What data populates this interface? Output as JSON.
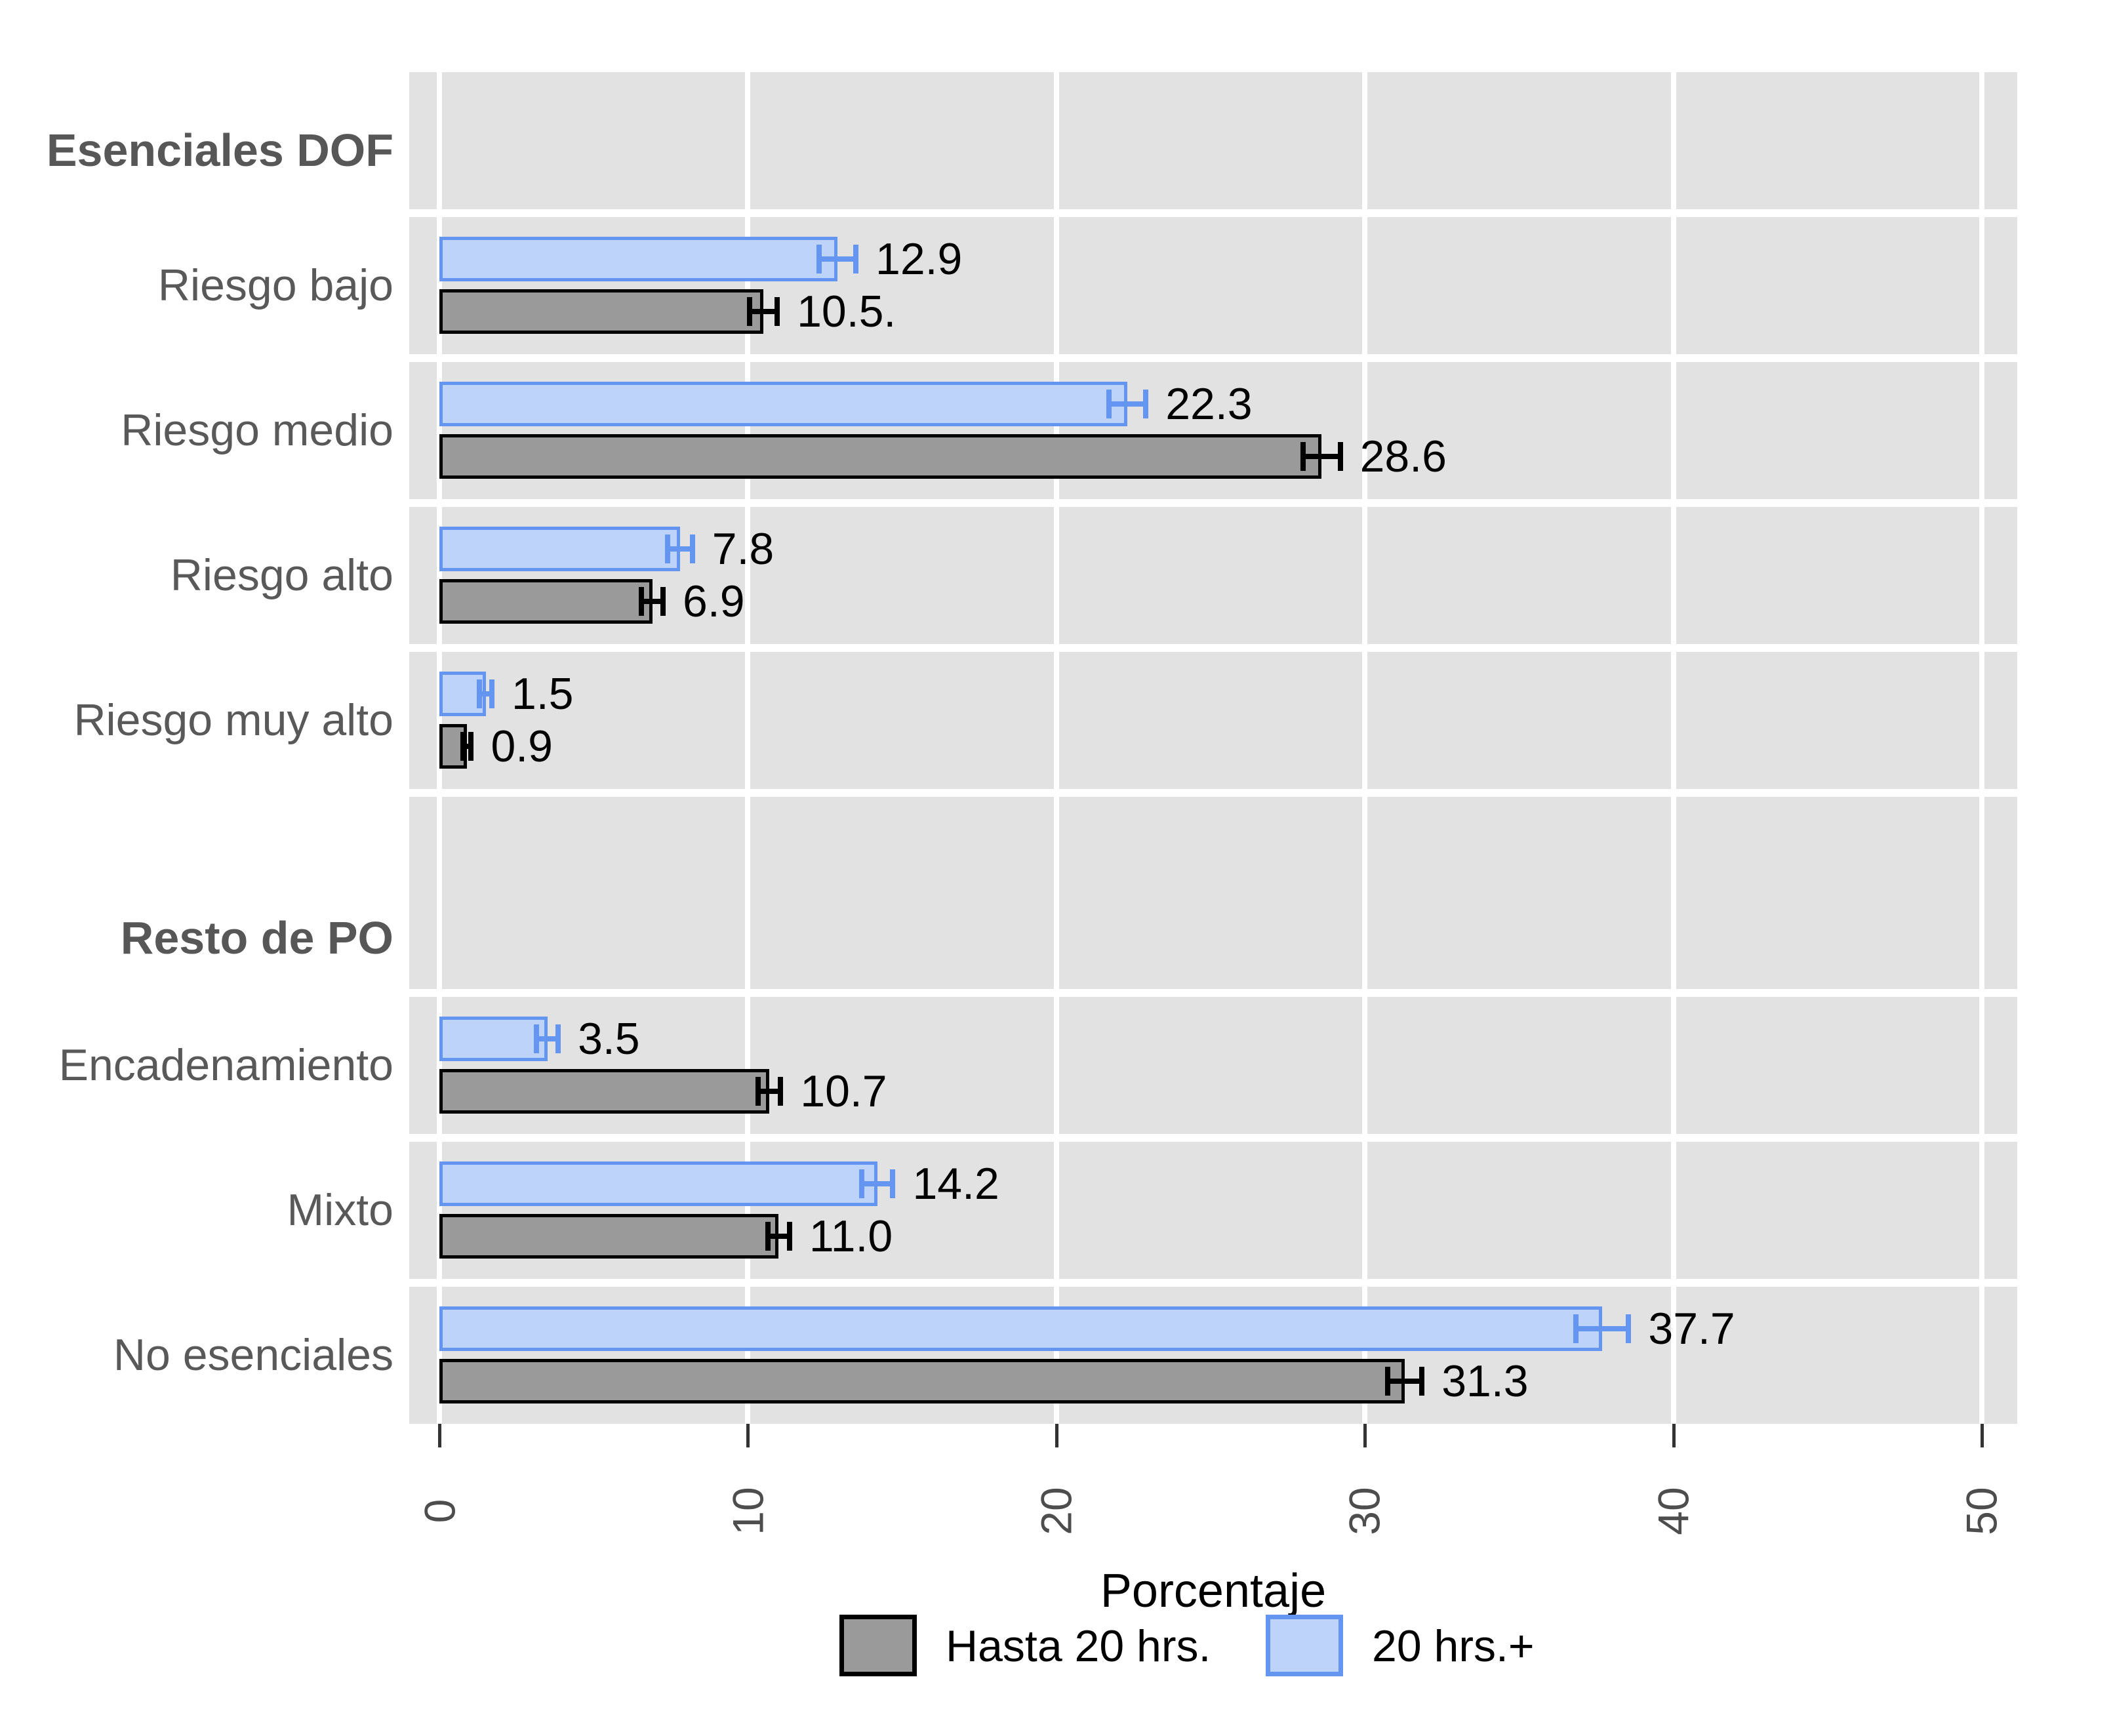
{
  "chart_data": {
    "type": "bar",
    "orientation": "horizontal",
    "xlabel": "Porcentaje",
    "x_ticks": [
      "0",
      "10",
      "20",
      "30",
      "40",
      "50"
    ],
    "x_tick_values": [
      0,
      10,
      20,
      30,
      40,
      50
    ],
    "xlim": [
      0,
      51
    ],
    "grid": "white vertical gridlines on gray band background",
    "legend_position": "bottom",
    "series_names": [
      "Hasta 20 hrs.",
      "20 hrs.+"
    ],
    "colors": {
      "blue_fill": "#bed3f9",
      "blue_border": "#6495f0",
      "gray_fill": "#9a9a9a",
      "gray_border": "#000000",
      "band_background": "#e2e2e2",
      "category_text": "#595959",
      "tick_text": "#4d4d4d"
    },
    "rows": [
      {
        "kind": "header",
        "label": "Esenciales DOF"
      },
      {
        "kind": "bars",
        "label": "Riesgo bajo",
        "blue": {
          "series": "20 hrs.+",
          "value": 12.9,
          "err": 0.6,
          "label": "12.9"
        },
        "gray": {
          "series": "Hasta 20 hrs.",
          "value": 10.5,
          "err": 0.45,
          "label": "10.5."
        }
      },
      {
        "kind": "bars",
        "label": "Riesgo medio",
        "blue": {
          "series": "20 hrs.+",
          "value": 22.3,
          "err": 0.6,
          "label": "22.3"
        },
        "gray": {
          "series": "Hasta 20 hrs.",
          "value": 28.6,
          "err": 0.6,
          "label": "28.6"
        }
      },
      {
        "kind": "bars",
        "label": "Riesgo alto",
        "blue": {
          "series": "20 hrs.+",
          "value": 7.8,
          "err": 0.4,
          "label": "7.8"
        },
        "gray": {
          "series": "Hasta 20 hrs.",
          "value": 6.9,
          "err": 0.35,
          "label": "6.9"
        }
      },
      {
        "kind": "bars",
        "label": "Riesgo muy alto",
        "blue": {
          "series": "20 hrs.+",
          "value": 1.5,
          "err": 0.2,
          "label": "1.5"
        },
        "gray": {
          "series": "Hasta 20 hrs.",
          "value": 0.9,
          "err": 0.13,
          "label": "0.9"
        }
      },
      {
        "kind": "header2",
        "label": "Resto de PO"
      },
      {
        "kind": "bars",
        "label": "Encadenamiento",
        "blue": {
          "series": "20 hrs.+",
          "value": 3.5,
          "err": 0.35,
          "label": "3.5"
        },
        "gray": {
          "series": "Hasta 20 hrs.",
          "value": 10.7,
          "err": 0.36,
          "label": "10.7"
        }
      },
      {
        "kind": "bars",
        "label": "Mixto",
        "blue": {
          "series": "20 hrs.+",
          "value": 14.2,
          "err": 0.5,
          "label": "14.2"
        },
        "gray": {
          "series": "Hasta 20 hrs.",
          "value": 11.0,
          "err": 0.35,
          "label": "11.0"
        }
      },
      {
        "kind": "bars",
        "label": "No esenciales",
        "blue": {
          "series": "20 hrs.+",
          "value": 37.7,
          "err": 0.85,
          "label": "37.7"
        },
        "gray": {
          "series": "Hasta 20 hrs.",
          "value": 31.3,
          "err": 0.55,
          "label": "31.3"
        }
      }
    ]
  },
  "axis": {
    "title": "Porcentaje"
  },
  "legend": {
    "items": [
      {
        "label": "Hasta 20 hrs.",
        "swatch": "gray"
      },
      {
        "label": "20 hrs.+",
        "swatch": "blue"
      }
    ]
  }
}
